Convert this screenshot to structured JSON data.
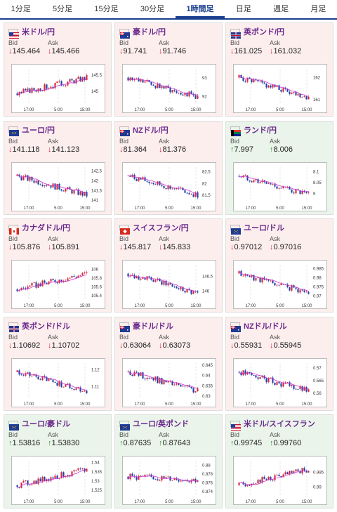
{
  "tabs": [
    {
      "label": "1分足",
      "active": false
    },
    {
      "label": "5分足",
      "active": false
    },
    {
      "label": "15分足",
      "active": false
    },
    {
      "label": "30分足",
      "active": false
    },
    {
      "label": "1時間足",
      "active": true
    },
    {
      "label": "日足",
      "active": false
    },
    {
      "label": "週足",
      "active": false
    },
    {
      "label": "月足",
      "active": false
    }
  ],
  "labels": {
    "bid": "Bid",
    "ask": "Ask"
  },
  "colors": {
    "down_bg": "#fdeeee",
    "up_bg": "#eaf4ea",
    "down": "#d9263b",
    "up": "#2a9a3a",
    "ma": "#cc33cc",
    "candle_up": "#d9263b",
    "candle_down": "#1f3fa8"
  },
  "pairs": [
    {
      "name": "米ドル/円",
      "flag": "us-flag",
      "dir": "down",
      "bid": "145.464",
      "ask": "145.466",
      "chart": {
        "xticks": [
          "17:00",
          "5:00",
          "15:00"
        ],
        "yticks": [
          "145.5",
          "145"
        ],
        "ylim": [
          144.6,
          145.7
        ],
        "trend": "up"
      }
    },
    {
      "name": "豪ドル/円",
      "flag": "au-flag",
      "dir": "down",
      "bid": "91.741",
      "ask": "91.746",
      "chart": {
        "xticks": [
          "17:00",
          "5:00",
          "15:00"
        ],
        "yticks": [
          "93",
          "92"
        ],
        "ylim": [
          91.6,
          93.5
        ],
        "trend": "down"
      }
    },
    {
      "name": "英ポンド/円",
      "flag": "gb-flag",
      "dir": "down",
      "bid": "161.025",
      "ask": "161.032",
      "chart": {
        "xticks": [
          "17:00",
          "5:00",
          "15:00"
        ],
        "yticks": [
          "162",
          "161"
        ],
        "ylim": [
          160.8,
          162.4
        ],
        "trend": "down"
      }
    },
    {
      "name": "ユーロ/円",
      "flag": "eu-flag",
      "dir": "down",
      "bid": "141.118",
      "ask": "141.123",
      "chart": {
        "xticks": [
          "17:00",
          "5:00",
          "15:00"
        ],
        "yticks": [
          "142.5",
          "142",
          "141.5",
          "141"
        ],
        "ylim": [
          140.9,
          142.7
        ],
        "trend": "down"
      }
    },
    {
      "name": "NZドル/円",
      "flag": "nz-flag",
      "dir": "down",
      "bid": "81.364",
      "ask": "81.376",
      "chart": {
        "xticks": [
          "17:00",
          "5:00",
          "15:00"
        ],
        "yticks": [
          "82.5",
          "82",
          "81.5"
        ],
        "ylim": [
          81.2,
          82.7
        ],
        "trend": "down"
      }
    },
    {
      "name": "ランド/円",
      "flag": "za-flag",
      "dir": "up",
      "bid": "7.997",
      "ask": "8.006",
      "chart": {
        "xticks": [
          "17:00",
          "5:00",
          "15:00"
        ],
        "yticks": [
          "8.1",
          "8.05",
          "8"
        ],
        "ylim": [
          7.96,
          8.12
        ],
        "trend": "down"
      }
    },
    {
      "name": "カナダドル/円",
      "flag": "ca-flag",
      "dir": "down",
      "bid": "105.876",
      "ask": "105.891",
      "chart": {
        "xticks": [
          "17:00",
          "5:00",
          "15:00"
        ],
        "yticks": [
          "106",
          "105.8",
          "105.6",
          "105.4"
        ],
        "ylim": [
          105.3,
          106.1
        ],
        "trend": "up"
      }
    },
    {
      "name": "スイスフラン/円",
      "flag": "ch-flag",
      "dir": "down",
      "bid": "145.817",
      "ask": "145.833",
      "chart": {
        "xticks": [
          "17:00",
          "5:00",
          "15:00"
        ],
        "yticks": [
          "146.5",
          "146"
        ],
        "ylim": [
          145.7,
          146.9
        ],
        "trend": "down"
      }
    },
    {
      "name": "ユーロ/ドル",
      "flag": "eu-flag",
      "dir": "down",
      "bid": "0.97012",
      "ask": "0.97016",
      "chart": {
        "xticks": [
          "17:00",
          "5:00",
          "15:00"
        ],
        "yticks": [
          "0.985",
          "0.98",
          "0.975",
          "0.97"
        ],
        "ylim": [
          0.968,
          0.987
        ],
        "trend": "down"
      }
    },
    {
      "name": "英ポンド/ドル",
      "flag": "gb-flag",
      "dir": "down",
      "bid": "1.10692",
      "ask": "1.10702",
      "chart": {
        "xticks": [
          "17:00",
          "5:00",
          "15:00"
        ],
        "yticks": [
          "1.12",
          "1.11"
        ],
        "ylim": [
          1.103,
          1.124
        ],
        "trend": "down"
      }
    },
    {
      "name": "豪ドル/ドル",
      "flag": "au-flag",
      "dir": "down",
      "bid": "0.63064",
      "ask": "0.63073",
      "chart": {
        "xticks": [
          "17:00",
          "5:00",
          "15:00"
        ],
        "yticks": [
          "0.645",
          "0.64",
          "0.635",
          "0.63"
        ],
        "ylim": [
          0.629,
          0.646
        ],
        "trend": "down"
      }
    },
    {
      "name": "NZドル/ドル",
      "flag": "nz-flag",
      "dir": "down",
      "bid": "0.55931",
      "ask": "0.55945",
      "chart": {
        "xticks": [
          "17:00",
          "5:00",
          "15:00"
        ],
        "yticks": [
          "0.57",
          "0.565",
          "0.56"
        ],
        "ylim": [
          0.558,
          0.572
        ],
        "trend": "down"
      }
    },
    {
      "name": "ユーロ/豪ドル",
      "flag": "eu-flag",
      "dir": "up",
      "bid": "1.53816",
      "ask": "1.53830",
      "chart": {
        "xticks": [
          "17:00",
          "5:00",
          "15:00"
        ],
        "yticks": [
          "1.54",
          "1.535",
          "1.53",
          "1.525"
        ],
        "ylim": [
          1.522,
          1.541
        ],
        "trend": "up"
      }
    },
    {
      "name": "ユーロ/英ポンド",
      "flag": "eu-flag",
      "dir": "up",
      "bid": "0.87635",
      "ask": "0.87643",
      "chart": {
        "xticks": [
          "17:00",
          "5:00",
          "15:00"
        ],
        "yticks": [
          "0.88",
          "0.878",
          "0.876",
          "0.874"
        ],
        "ylim": [
          0.873,
          0.881
        ],
        "trend": "flat"
      }
    },
    {
      "name": "米ドル/スイスフラン",
      "flag": "us-flag",
      "dir": "up",
      "bid": "0.99745",
      "ask": "0.99760",
      "chart": {
        "xticks": [
          "17:00",
          "5:00",
          "15:00"
        ],
        "yticks": [
          "0.995",
          "0.99"
        ],
        "ylim": [
          0.987,
          0.999
        ],
        "trend": "up"
      }
    }
  ]
}
